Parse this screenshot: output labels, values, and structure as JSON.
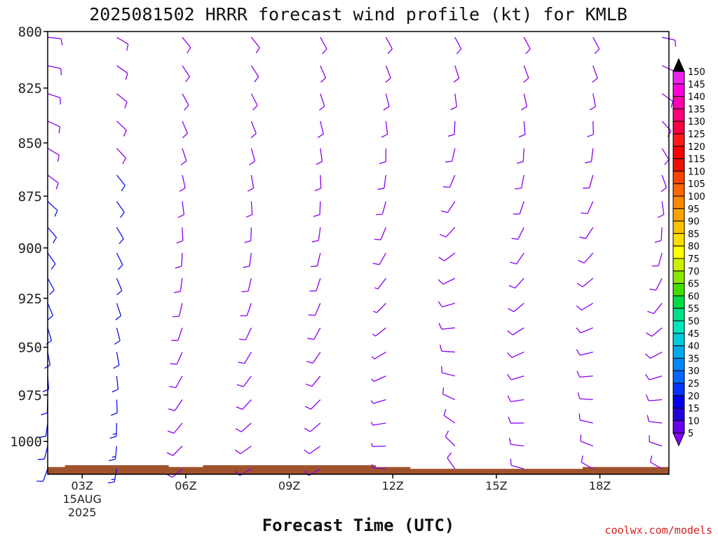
{
  "chart_data": {
    "type": "wind_profile",
    "title": "2025081502 HRRR forecast wind profile (kt) for KMLB",
    "xlabel": "Forecast Time (UTC)",
    "ylabel": "",
    "credit": "coolwx.com/models",
    "y_axis": {
      "scale": "log",
      "inverted": true,
      "range_hpa": [
        1018,
        800
      ],
      "ticks": [
        "800",
        "825",
        "850",
        "875",
        "900",
        "925",
        "950",
        "975",
        "1000"
      ]
    },
    "x_axis": {
      "range_hours": [
        2.0,
        20.0
      ],
      "ticks": [
        {
          "hour": 3,
          "label": "03Z",
          "sub1": "15AUG",
          "sub2": "2025"
        },
        {
          "hour": 6,
          "label": "06Z",
          "sub1": "",
          "sub2": ""
        },
        {
          "hour": 9,
          "label": "09Z",
          "sub1": "",
          "sub2": ""
        },
        {
          "hour": 12,
          "label": "12Z",
          "sub1": "",
          "sub2": ""
        },
        {
          "hour": 15,
          "label": "15Z",
          "sub1": "",
          "sub2": ""
        },
        {
          "hour": 18,
          "label": "18Z",
          "sub1": "",
          "sub2": ""
        }
      ]
    },
    "terrain_surface_hpa": [
      {
        "from": 2.0,
        "to": 2.5,
        "p": 1014
      },
      {
        "from": 2.5,
        "to": 5.5,
        "p": 1013
      },
      {
        "from": 5.5,
        "to": 6.5,
        "p": 1014
      },
      {
        "from": 6.5,
        "to": 11.5,
        "p": 1013
      },
      {
        "from": 11.5,
        "to": 12.5,
        "p": 1014
      },
      {
        "from": 12.5,
        "to": 17.5,
        "p": 1015
      },
      {
        "from": 17.5,
        "to": 20.0,
        "p": 1014
      }
    ],
    "colorbar": {
      "labels": [
        "150",
        "145",
        "140",
        "135",
        "130",
        "125",
        "120",
        "115",
        "110",
        "105",
        "100",
        "95",
        "90",
        "85",
        "80",
        "75",
        "70",
        "65",
        "60",
        "55",
        "50",
        "45",
        "40",
        "35",
        "30",
        "25",
        "20",
        "15",
        "10",
        "5"
      ],
      "colors": [
        "#ee22ee",
        "#ff00dd",
        "#ff00aa",
        "#ff0077",
        "#ff0044",
        "#ff1a1a",
        "#ff0000",
        "#ee1100",
        "#ff4400",
        "#ff6600",
        "#ff8800",
        "#ffa200",
        "#ffc000",
        "#ffdd00",
        "#ffff00",
        "#ccf000",
        "#88e800",
        "#44dd00",
        "#00dd44",
        "#00e088",
        "#00e8bb",
        "#00ccdd",
        "#00aaee",
        "#0088ff",
        "#0066ff",
        "#0033ff",
        "#0000ee",
        "#2200dd",
        "#6600ee",
        "#8800ff"
      ]
    },
    "barb_columns": [
      {
        "hour": 2.0,
        "speed_low": 12,
        "speed_high": 9,
        "dir_low": 200,
        "dir_high": 95
      },
      {
        "hour": 4.0,
        "speed_low": 13,
        "speed_high": 9,
        "dir_low": 190,
        "dir_high": 120
      },
      {
        "hour": 5.9,
        "speed_low": 9,
        "speed_high": 8,
        "dir_low": 230,
        "dir_high": 140
      },
      {
        "hour": 7.9,
        "speed_low": 8,
        "speed_high": 8,
        "dir_low": 240,
        "dir_high": 140
      },
      {
        "hour": 9.9,
        "speed_low": 8,
        "speed_high": 8,
        "dir_low": 240,
        "dir_high": 150
      },
      {
        "hour": 11.8,
        "speed_low": 7,
        "speed_high": 8,
        "dir_low": 275,
        "dir_high": 150
      },
      {
        "hour": 13.8,
        "speed_low": 8,
        "speed_high": 8,
        "dir_low": 325,
        "dir_high": 150
      },
      {
        "hour": 15.8,
        "speed_low": 8,
        "speed_high": 8,
        "dir_low": 285,
        "dir_high": 150
      },
      {
        "hour": 17.8,
        "speed_low": 8,
        "speed_high": 8,
        "dir_low": 300,
        "dir_high": 150
      },
      {
        "hour": 19.8,
        "speed_low": 8,
        "speed_high": 8,
        "dir_low": 300,
        "dir_high": 100
      }
    ]
  }
}
